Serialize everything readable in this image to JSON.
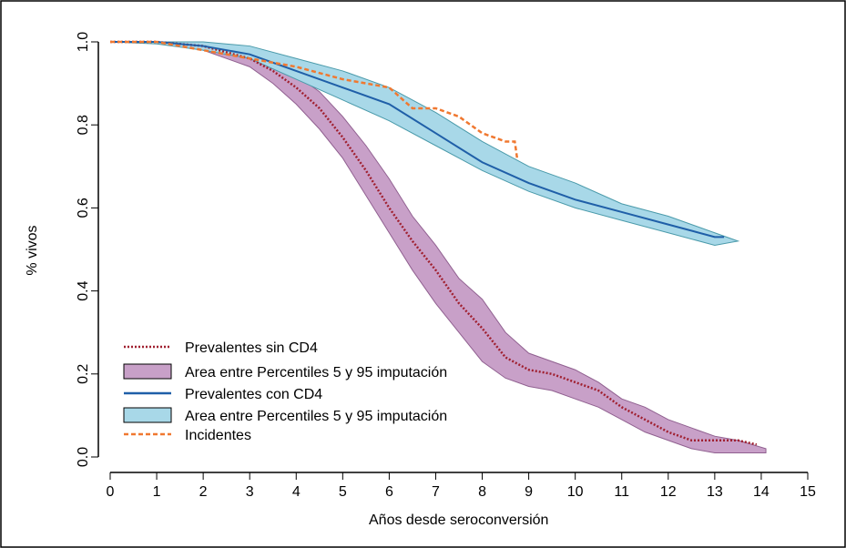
{
  "chart_data": {
    "type": "survival",
    "x_label": "Años desde seroconversión",
    "y_label": "% vivos",
    "xlim": [
      0,
      15
    ],
    "ylim": [
      0,
      1
    ],
    "xticks": [
      0,
      1,
      2,
      3,
      4,
      5,
      6,
      7,
      8,
      9,
      10,
      11,
      12,
      13,
      14,
      15
    ],
    "yticks": [
      {
        "value": 0,
        "label": "0.0"
      },
      {
        "value": 0.2,
        "label": "0.2"
      },
      {
        "value": 0.4,
        "label": "0.4"
      },
      {
        "value": 0.6,
        "label": "0.6"
      },
      {
        "value": 0.8,
        "label": "0.8"
      },
      {
        "value": 1,
        "label": "1.0"
      }
    ],
    "legend": "bottom-left",
    "series": [
      {
        "name": "Prevalentes sin CD4",
        "color": "#a02030",
        "style": "dotted",
        "x": [
          0,
          1,
          2,
          3,
          3.5,
          4,
          4.5,
          5,
          5.5,
          6,
          6.5,
          7,
          7.5,
          8,
          8.5,
          9,
          9.5,
          10,
          10.5,
          11,
          11.5,
          12,
          12.5,
          13,
          13.5,
          13.9
        ],
        "values": [
          1.0,
          1.0,
          0.99,
          0.96,
          0.93,
          0.89,
          0.84,
          0.77,
          0.69,
          0.6,
          0.52,
          0.45,
          0.37,
          0.31,
          0.24,
          0.21,
          0.2,
          0.18,
          0.16,
          0.12,
          0.09,
          0.06,
          0.04,
          0.04,
          0.04,
          0.03
        ]
      },
      {
        "name": "Area entre Percentiles 5 y 95 imputación",
        "color": "#c8a0c8",
        "x": [
          0,
          1,
          2,
          3,
          3.5,
          4,
          4.5,
          5,
          5.5,
          6,
          6.5,
          7,
          7.5,
          8,
          8.5,
          9,
          9.5,
          10,
          10.5,
          11,
          11.5,
          12,
          12.5,
          13,
          13.5,
          14.1
        ],
        "lower": [
          1.0,
          1.0,
          0.98,
          0.94,
          0.9,
          0.85,
          0.79,
          0.72,
          0.63,
          0.54,
          0.45,
          0.37,
          0.3,
          0.23,
          0.19,
          0.17,
          0.16,
          0.14,
          0.12,
          0.09,
          0.06,
          0.04,
          0.02,
          0.01,
          0.01,
          0.01
        ],
        "upper": [
          1.0,
          1.0,
          0.99,
          0.97,
          0.95,
          0.92,
          0.88,
          0.82,
          0.75,
          0.67,
          0.58,
          0.51,
          0.43,
          0.38,
          0.3,
          0.25,
          0.23,
          0.21,
          0.18,
          0.14,
          0.12,
          0.09,
          0.07,
          0.05,
          0.04,
          0.02
        ]
      },
      {
        "name": "Prevalentes con CD4",
        "color": "#1f5fa8",
        "style": "solid",
        "x": [
          0,
          1,
          2,
          3,
          4,
          5,
          6,
          7,
          8,
          9,
          10,
          11,
          12,
          13,
          13.2
        ],
        "values": [
          1.0,
          1.0,
          0.99,
          0.97,
          0.93,
          0.89,
          0.85,
          0.78,
          0.71,
          0.66,
          0.62,
          0.59,
          0.56,
          0.53,
          0.53
        ]
      },
      {
        "name": "Area entre Percentiles 5 y 95 imputación",
        "color": "#a8d8e8",
        "x": [
          0,
          1,
          2,
          3,
          4,
          5,
          6,
          7,
          8,
          9,
          10,
          11,
          12,
          13,
          13.5
        ],
        "lower": [
          1.0,
          0.995,
          0.98,
          0.96,
          0.91,
          0.86,
          0.81,
          0.75,
          0.69,
          0.64,
          0.6,
          0.57,
          0.54,
          0.51,
          0.52
        ],
        "upper": [
          1.0,
          1.0,
          1.0,
          0.99,
          0.96,
          0.93,
          0.89,
          0.83,
          0.76,
          0.7,
          0.66,
          0.61,
          0.58,
          0.54,
          0.52
        ]
      },
      {
        "name": "Incidentes",
        "color": "#f07830",
        "style": "dashed",
        "x": [
          0,
          1,
          2,
          3,
          4,
          5,
          6,
          6.5,
          7,
          7.5,
          8,
          8.5,
          8.7,
          8.75
        ],
        "values": [
          1.0,
          1.0,
          0.98,
          0.96,
          0.94,
          0.91,
          0.89,
          0.84,
          0.84,
          0.82,
          0.78,
          0.76,
          0.76,
          0.72
        ]
      }
    ]
  }
}
